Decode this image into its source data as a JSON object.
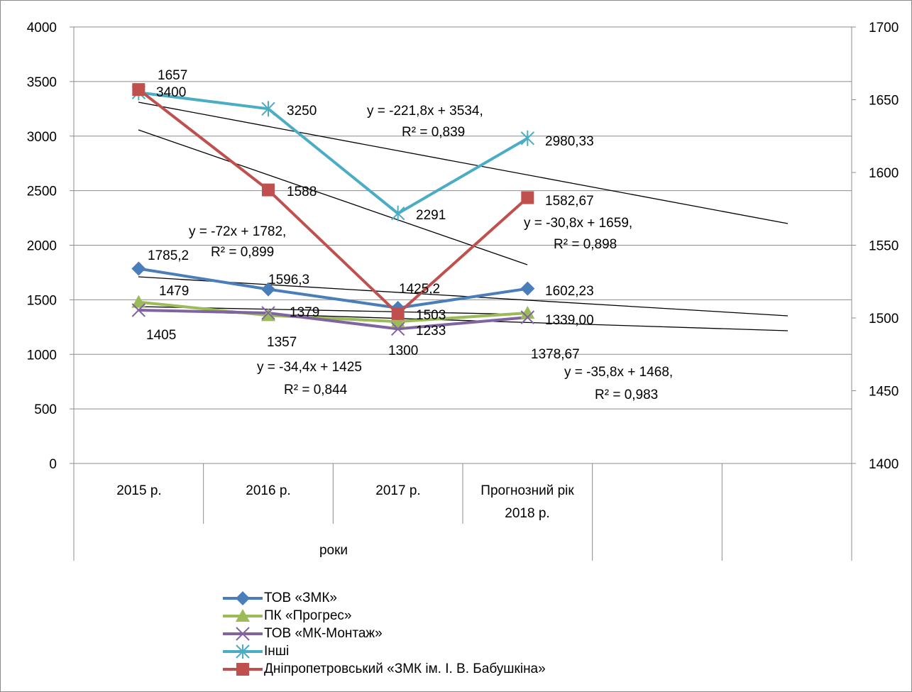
{
  "chart_data": {
    "type": "line",
    "categories": [
      "2015 р.",
      "2016 р.",
      "2017 р.",
      "Прогнозний рік 2018 р."
    ],
    "xlabel": "роки",
    "y_left": {
      "min": 0,
      "max": 4000,
      "step": 500
    },
    "y_right": {
      "min": 1400,
      "max": 1700,
      "step": 50
    },
    "series": [
      {
        "name": "ТОВ «ЗМК»",
        "axis": "left",
        "color": "#4a7ebb",
        "marker": "diamond",
        "values": [
          1785.2,
          1596.3,
          1425.2,
          1602.23
        ],
        "labels": [
          "1785,2",
          "1596,3",
          "1425,2",
          "1602,23"
        ]
      },
      {
        "name": "ПК «Прогрес»",
        "axis": "left",
        "color": "#9bbb59",
        "marker": "triangle",
        "values": [
          1479,
          1357,
          1300,
          1378.67
        ],
        "labels": [
          "1479",
          "1357",
          "1300",
          "1378,67"
        ]
      },
      {
        "name": "ТОВ «МК-Монтаж»",
        "axis": "left",
        "color": "#8064a2",
        "marker": "x",
        "values": [
          1405,
          1379,
          1233,
          1339.0
        ],
        "labels": [
          "1405",
          "1379",
          "1233",
          "1339,00"
        ]
      },
      {
        "name": "Інші",
        "axis": "left",
        "color": "#4bacc6",
        "marker": "star",
        "values": [
          3400,
          3250,
          2291,
          2980.33
        ],
        "labels": [
          "3400",
          "3250",
          "2291",
          "2980,33"
        ]
      },
      {
        "name": "Дніпропетровський «ЗМК ім. І. В. Бабушкіна»",
        "axis": "right",
        "color": "#c0504d",
        "marker": "square",
        "values": [
          1657,
          1588,
          1503,
          1582.67
        ],
        "labels": [
          "1657",
          "1588",
          "1503",
          "1582,67"
        ]
      }
    ],
    "trendlines": [
      {
        "eq": "y = -221,8x + 3534,",
        "r2": "R² = 0,839"
      },
      {
        "eq": "y = -72x + 1782,",
        "r2": "R² = 0,899"
      },
      {
        "eq": "y = -30,8x + 1659,",
        "r2": "R² = 0,898"
      },
      {
        "eq": "y = -34,4x + 1425",
        "r2": "R² = 0,844"
      },
      {
        "eq": "y = -35,8x + 1468,",
        "r2": "R² = 0,983"
      }
    ]
  }
}
